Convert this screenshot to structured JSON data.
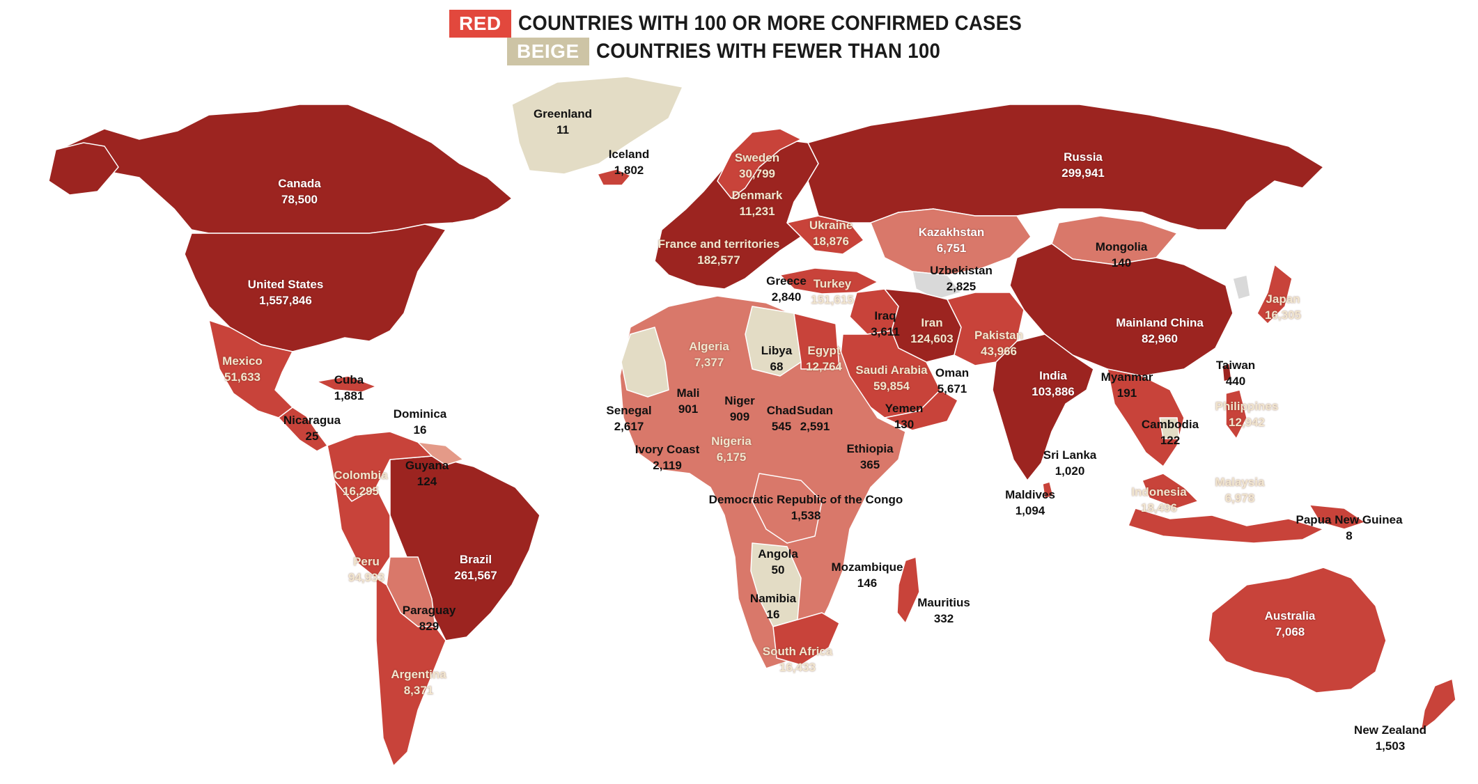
{
  "legend": {
    "red": {
      "badge": "RED",
      "text": "COUNTRIES WITH 100 OR MORE CONFIRMED CASES"
    },
    "beige": {
      "badge": "BEIGE",
      "text": "COUNTRIES WITH FEWER THAN 100"
    }
  },
  "colors": {
    "dark_red": "#9c2420",
    "mid_red": "#c8433a",
    "light_red": "#d9786a",
    "pale_red": "#e49a88",
    "beige": "#e3dcc5",
    "no_data": "#d9d9d9",
    "ocean": "#ffffff"
  },
  "countries": [
    {
      "name": "Greenland",
      "count": "11",
      "style": "on-white"
    },
    {
      "name": "Iceland",
      "count": "1,802",
      "style": "on-white"
    },
    {
      "name": "Canada",
      "count": "78,500",
      "style": "on-dark"
    },
    {
      "name": "United States",
      "count": "1,557,846",
      "style": "on-dark"
    },
    {
      "name": "Mexico",
      "count": "51,633",
      "style": "on-light"
    },
    {
      "name": "Cuba",
      "count": "1,881",
      "style": "on-white"
    },
    {
      "name": "Dominica",
      "count": "16",
      "style": "on-white"
    },
    {
      "name": "Nicaragua",
      "count": "25",
      "style": "on-white"
    },
    {
      "name": "Guyana",
      "count": "124",
      "style": "on-white"
    },
    {
      "name": "Colombia",
      "count": "16,295",
      "style": "on-light"
    },
    {
      "name": "Peru",
      "count": "94,933",
      "style": "on-light"
    },
    {
      "name": "Brazil",
      "count": "261,567",
      "style": "on-dark"
    },
    {
      "name": "Paraguay",
      "count": "829",
      "style": "on-white"
    },
    {
      "name": "Argentina",
      "count": "8,371",
      "style": "on-light"
    },
    {
      "name": "Sweden",
      "count": "30,799",
      "style": "on-light"
    },
    {
      "name": "Denmark",
      "count": "11,231",
      "style": "on-light"
    },
    {
      "name": "France and territories",
      "count": "182,577",
      "style": "on-light"
    },
    {
      "name": "Ukraine",
      "count": "18,876",
      "style": "on-light"
    },
    {
      "name": "Greece",
      "count": "2,840",
      "style": "on-white"
    },
    {
      "name": "Turkey",
      "count": "151,615",
      "style": "on-light"
    },
    {
      "name": "Russia",
      "count": "299,941",
      "style": "on-dark"
    },
    {
      "name": "Kazakhstan",
      "count": "6,751",
      "style": "on-dark"
    },
    {
      "name": "Uzbekistan",
      "count": "2,825",
      "style": "on-white"
    },
    {
      "name": "Mongolia",
      "count": "140",
      "style": "on-white"
    },
    {
      "name": "Mainland China",
      "count": "82,960",
      "style": "on-dark"
    },
    {
      "name": "Japan",
      "count": "16,305",
      "style": "on-light"
    },
    {
      "name": "Iraq",
      "count": "3,611",
      "style": "on-white"
    },
    {
      "name": "Iran",
      "count": "124,603",
      "style": "on-light"
    },
    {
      "name": "Pakistan",
      "count": "43,966",
      "style": "on-light"
    },
    {
      "name": "India",
      "count": "103,886",
      "style": "on-dark"
    },
    {
      "name": "Saudi Arabia",
      "count": "59,854",
      "style": "on-light"
    },
    {
      "name": "Oman",
      "count": "5,671",
      "style": "on-white"
    },
    {
      "name": "Yemen",
      "count": "130",
      "style": "on-white"
    },
    {
      "name": "Myanmar",
      "count": "191",
      "style": "on-white"
    },
    {
      "name": "Taiwan",
      "count": "440",
      "style": "on-white"
    },
    {
      "name": "Philippines",
      "count": "12,942",
      "style": "on-light"
    },
    {
      "name": "Cambodia",
      "count": "122",
      "style": "on-white"
    },
    {
      "name": "Sri Lanka",
      "count": "1,020",
      "style": "on-white"
    },
    {
      "name": "Maldives",
      "count": "1,094",
      "style": "on-white"
    },
    {
      "name": "Malaysia",
      "count": "6,978",
      "style": "on-light"
    },
    {
      "name": "Indonesia",
      "count": "18,496",
      "style": "on-light"
    },
    {
      "name": "Papua New Guinea",
      "count": "8",
      "style": "on-white"
    },
    {
      "name": "Australia",
      "count": "7,068",
      "style": "on-dark"
    },
    {
      "name": "New Zealand",
      "count": "1,503",
      "style": "on-white"
    },
    {
      "name": "Algeria",
      "count": "7,377",
      "style": "on-light"
    },
    {
      "name": "Libya",
      "count": "68",
      "style": "on-white"
    },
    {
      "name": "Egypt",
      "count": "12,764",
      "style": "on-light"
    },
    {
      "name": "Mali",
      "count": "901",
      "style": "on-white"
    },
    {
      "name": "Niger",
      "count": "909",
      "style": "on-white"
    },
    {
      "name": "Chad",
      "count": "545",
      "style": "on-white"
    },
    {
      "name": "Sudan",
      "count": "2,591",
      "style": "on-white"
    },
    {
      "name": "Senegal",
      "count": "2,617",
      "style": "on-white"
    },
    {
      "name": "Ivory Coast",
      "count": "2,119",
      "style": "on-white"
    },
    {
      "name": "Nigeria",
      "count": "6,175",
      "style": "on-light"
    },
    {
      "name": "Ethiopia",
      "count": "365",
      "style": "on-white"
    },
    {
      "name": "Democratic Republic of the Congo",
      "count": "1,538",
      "style": "on-white"
    },
    {
      "name": "Angola",
      "count": "50",
      "style": "on-white"
    },
    {
      "name": "Namibia",
      "count": "16",
      "style": "on-white"
    },
    {
      "name": "Mozambique",
      "count": "146",
      "style": "on-white"
    },
    {
      "name": "Mauritius",
      "count": "332",
      "style": "on-white"
    },
    {
      "name": "South Africa",
      "count": "16,433",
      "style": "on-light"
    }
  ]
}
